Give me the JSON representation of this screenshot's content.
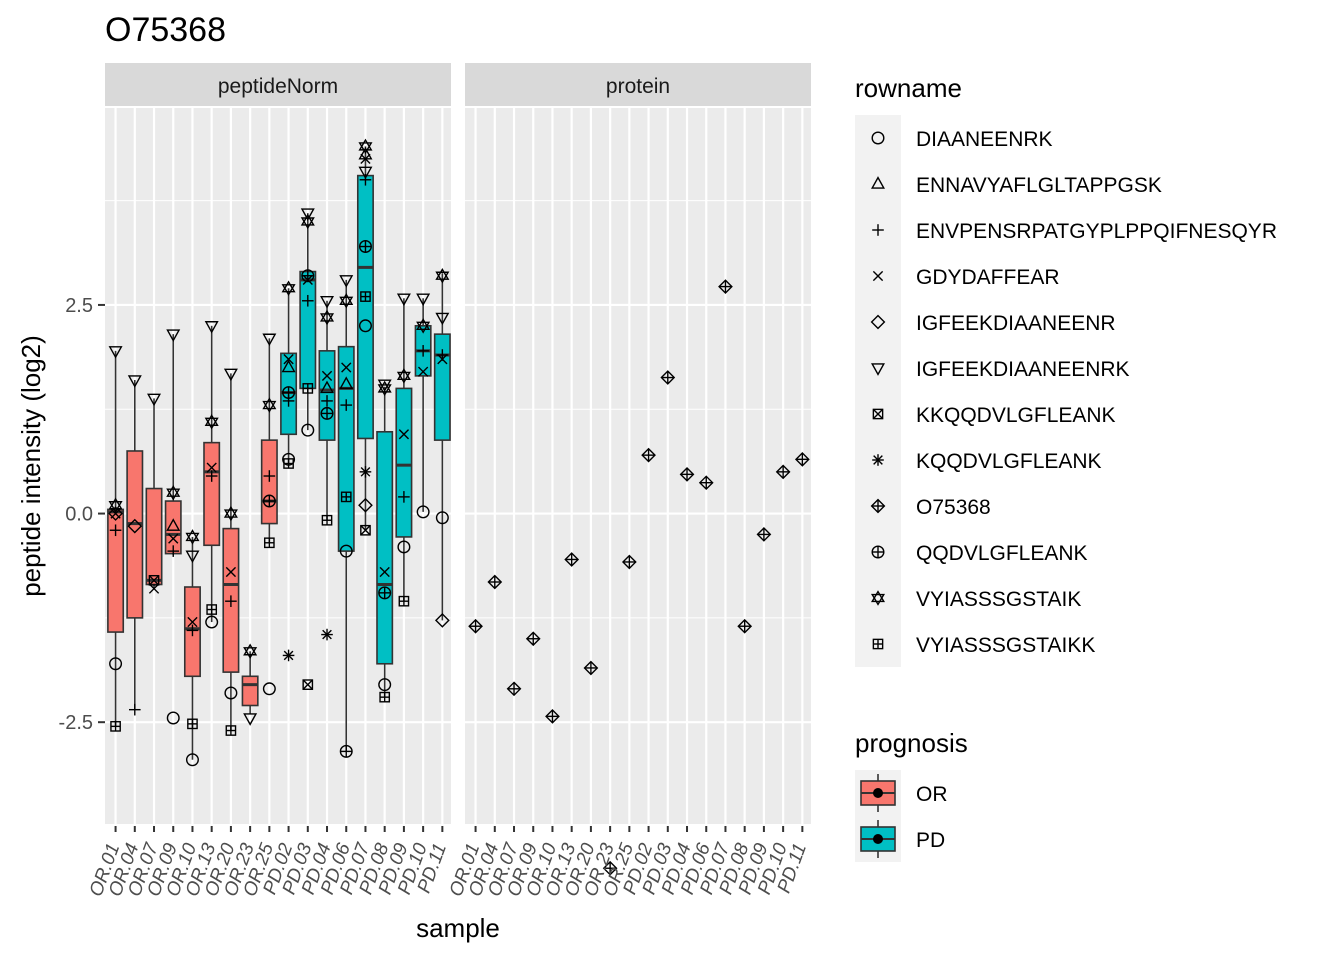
{
  "chart_data": {
    "type": "boxplot",
    "title": "O75368",
    "xlabel": "sample",
    "ylabel": "peptide intensity (log2)",
    "ylim": [
      -3.72,
      4.86
    ],
    "y_ticks": [
      -2.5,
      0.0,
      2.5
    ],
    "y_tick_labels": [
      "-2.5",
      "0.0",
      "2.5"
    ],
    "samples": [
      "OR.01",
      "OR.04",
      "OR.07",
      "OR.09",
      "OR.10",
      "OR.13",
      "OR.20",
      "OR.23",
      "OR.25",
      "PD.02",
      "PD.03",
      "PD.04",
      "PD.06",
      "PD.07",
      "PD.08",
      "PD.09",
      "PD.10",
      "PD.11"
    ],
    "sample_prognosis": [
      "OR",
      "OR",
      "OR",
      "OR",
      "OR",
      "OR",
      "OR",
      "OR",
      "OR",
      "PD",
      "PD",
      "PD",
      "PD",
      "PD",
      "PD",
      "PD",
      "PD",
      "PD"
    ],
    "facets": [
      {
        "name": "peptideNorm",
        "boxes": [
          {
            "q1": -1.42,
            "median": 0.02,
            "q3": 0.05,
            "lower": -2.55,
            "upper": 1.95
          },
          {
            "q1": -1.25,
            "median": -0.12,
            "q3": 0.75,
            "lower": -2.35,
            "upper": 1.6
          },
          {
            "q1": -0.85,
            "median": -0.8,
            "q3": 0.3,
            "lower": -0.9,
            "upper": 1.38
          },
          {
            "q1": -0.48,
            "median": -0.25,
            "q3": 0.15,
            "lower": -0.5,
            "upper": 2.15
          },
          {
            "q1": -1.95,
            "median": -1.38,
            "q3": -0.88,
            "lower": -2.95,
            "upper": -0.28
          },
          {
            "q1": -0.38,
            "median": 0.5,
            "q3": 0.85,
            "lower": -1.3,
            "upper": 2.25
          },
          {
            "q1": -1.9,
            "median": -0.85,
            "q3": -0.18,
            "lower": -2.6,
            "upper": 1.68
          },
          {
            "q1": -2.3,
            "median": -2.05,
            "q3": -1.95,
            "lower": -2.4,
            "upper": -1.65
          },
          {
            "q1": -0.12,
            "median": 0.15,
            "q3": 0.88,
            "lower": -0.35,
            "upper": 2.1
          },
          {
            "q1": 0.95,
            "median": 1.45,
            "q3": 1.92,
            "lower": 0.6,
            "upper": 2.7
          },
          {
            "q1": 1.5,
            "median": 2.8,
            "q3": 2.9,
            "lower": 1.0,
            "upper": 3.6
          },
          {
            "q1": 0.88,
            "median": 1.48,
            "q3": 1.95,
            "lower": -0.08,
            "upper": 2.55
          },
          {
            "q1": -0.45,
            "median": 1.5,
            "q3": 2.0,
            "lower": -2.85,
            "upper": 2.8
          },
          {
            "q1": 0.9,
            "median": 2.95,
            "q3": 4.05,
            "lower": -0.2,
            "upper": 4.4
          },
          {
            "q1": -1.8,
            "median": -0.85,
            "q3": 0.98,
            "lower": -2.2,
            "upper": 1.52
          },
          {
            "q1": -0.28,
            "median": 0.58,
            "q3": 1.5,
            "lower": -1.05,
            "upper": 2.58
          },
          {
            "q1": 1.65,
            "median": 1.95,
            "q3": 2.25,
            "lower": 0.02,
            "upper": 2.58
          },
          {
            "q1": 0.88,
            "median": 1.9,
            "q3": 2.15,
            "lower": -1.28,
            "upper": 2.88
          }
        ],
        "points": [
          {
            "s": 0,
            "y": -0.2,
            "p": "ENVPENSRPATGYPLPPQIFNESQYR"
          },
          {
            "s": 0,
            "y": 0.0,
            "p": "GDYDAFFEAR"
          },
          {
            "s": 0,
            "y": 0.0,
            "p": "IGFEEKDIAANEENR"
          },
          {
            "s": 0,
            "y": 1.95,
            "p": "IGFEEKDIAANEENRK"
          },
          {
            "s": 0,
            "y": 0.1,
            "p": "VYIASSSGSTAIK"
          },
          {
            "s": 0,
            "y": -1.8,
            "p": "DIAANEENRK"
          },
          {
            "s": 0,
            "y": -2.55,
            "p": "VYIASSSGSTAIKK"
          },
          {
            "s": 1,
            "y": -0.15,
            "p": "IGFEEKDIAANEENR"
          },
          {
            "s": 1,
            "y": 1.6,
            "p": "IGFEEKDIAANEENRK"
          },
          {
            "s": 1,
            "y": -2.35,
            "p": "ENVPENSRPATGYPLPPQIFNESQYR"
          },
          {
            "s": 2,
            "y": -0.9,
            "p": "GDYDAFFEAR"
          },
          {
            "s": 2,
            "y": -0.8,
            "p": "KKQQDVLGFLEANK"
          },
          {
            "s": 2,
            "y": 1.38,
            "p": "IGFEEKDIAANEENRK"
          },
          {
            "s": 3,
            "y": -0.15,
            "p": "ENNAVYAFLGLTAPPGSK"
          },
          {
            "s": 3,
            "y": -0.45,
            "p": "ENVPENSRPATGYPLPPQIFNESQYR"
          },
          {
            "s": 3,
            "y": -0.3,
            "p": "GDYDAFFEAR"
          },
          {
            "s": 3,
            "y": 2.15,
            "p": "IGFEEKDIAANEENRK"
          },
          {
            "s": 3,
            "y": 0.25,
            "p": "VYIASSSGSTAIK"
          },
          {
            "s": 3,
            "y": -2.45,
            "p": "DIAANEENRK"
          },
          {
            "s": 4,
            "y": -1.4,
            "p": "ENVPENSRPATGYPLPPQIFNESQYR"
          },
          {
            "s": 4,
            "y": -1.3,
            "p": "GDYDAFFEAR"
          },
          {
            "s": 4,
            "y": -0.5,
            "p": "IGFEEKDIAANEENRK"
          },
          {
            "s": 4,
            "y": -0.28,
            "p": "VYIASSSGSTAIK"
          },
          {
            "s": 4,
            "y": -2.52,
            "p": "VYIASSSGSTAIKK"
          },
          {
            "s": 4,
            "y": -2.95,
            "p": "DIAANEENRK"
          },
          {
            "s": 5,
            "y": 0.55,
            "p": "GDYDAFFEAR"
          },
          {
            "s": 5,
            "y": 0.45,
            "p": "ENVPENSRPATGYPLPPQIFNESQYR"
          },
          {
            "s": 5,
            "y": 2.25,
            "p": "IGFEEKDIAANEENRK"
          },
          {
            "s": 5,
            "y": 1.1,
            "p": "VYIASSSGSTAIK"
          },
          {
            "s": 5,
            "y": -1.3,
            "p": "DIAANEENRK"
          },
          {
            "s": 5,
            "y": -1.15,
            "p": "VYIASSSGSTAIKK"
          },
          {
            "s": 6,
            "y": -0.7,
            "p": "GDYDAFFEAR"
          },
          {
            "s": 6,
            "y": -1.05,
            "p": "ENVPENSRPATGYPLPPQIFNESQYR"
          },
          {
            "s": 6,
            "y": 0.0,
            "p": "VYIASSSGSTAIK"
          },
          {
            "s": 6,
            "y": 1.68,
            "p": "IGFEEKDIAANEENRK"
          },
          {
            "s": 6,
            "y": -2.15,
            "p": "DIAANEENRK"
          },
          {
            "s": 6,
            "y": -2.6,
            "p": "VYIASSSGSTAIKK"
          },
          {
            "s": 7,
            "y": -1.65,
            "p": "VYIASSSGSTAIK"
          },
          {
            "s": 7,
            "y": -2.45,
            "p": "IGFEEKDIAANEENRK"
          },
          {
            "s": 8,
            "y": 0.45,
            "p": "ENVPENSRPATGYPLPPQIFNESQYR"
          },
          {
            "s": 8,
            "y": 0.15,
            "p": "QQDVLGFLEANK"
          },
          {
            "s": 8,
            "y": 1.3,
            "p": "VYIASSSGSTAIK"
          },
          {
            "s": 8,
            "y": 2.1,
            "p": "IGFEEKDIAANEENRK"
          },
          {
            "s": 8,
            "y": -0.35,
            "p": "VYIASSSGSTAIKK"
          },
          {
            "s": 8,
            "y": -2.1,
            "p": "DIAANEENRK"
          },
          {
            "s": 9,
            "y": 1.85,
            "p": "GDYDAFFEAR"
          },
          {
            "s": 9,
            "y": 1.75,
            "p": "ENNAVYAFLGLTAPPGSK"
          },
          {
            "s": 9,
            "y": 1.35,
            "p": "ENVPENSRPATGYPLPPQIFNESQYR"
          },
          {
            "s": 9,
            "y": 1.45,
            "p": "QQDVLGFLEANK"
          },
          {
            "s": 9,
            "y": 2.7,
            "p": "VYIASSSGSTAIK"
          },
          {
            "s": 9,
            "y": 0.65,
            "p": "DIAANEENRK"
          },
          {
            "s": 9,
            "y": 0.6,
            "p": "VYIASSSGSTAIKK"
          },
          {
            "s": 9,
            "y": -1.7,
            "p": "KQQDVLGFLEANK"
          },
          {
            "s": 10,
            "y": 2.8,
            "p": "GDYDAFFEAR"
          },
          {
            "s": 10,
            "y": 2.55,
            "p": "ENVPENSRPATGYPLPPQIFNESQYR"
          },
          {
            "s": 10,
            "y": 2.85,
            "p": "QQDVLGFLEANK"
          },
          {
            "s": 10,
            "y": 3.6,
            "p": "IGFEEKDIAANEENRK"
          },
          {
            "s": 10,
            "y": 3.5,
            "p": "VYIASSSGSTAIK"
          },
          {
            "s": 10,
            "y": 1.5,
            "p": "VYIASSSGSTAIKK"
          },
          {
            "s": 10,
            "y": 1.0,
            "p": "DIAANEENRK"
          },
          {
            "s": 10,
            "y": -2.05,
            "p": "KKQQDVLGFLEANK"
          },
          {
            "s": 11,
            "y": 1.65,
            "p": "GDYDAFFEAR"
          },
          {
            "s": 11,
            "y": 1.5,
            "p": "ENNAVYAFLGLTAPPGSK"
          },
          {
            "s": 11,
            "y": 1.35,
            "p": "ENVPENSRPATGYPLPPQIFNESQYR"
          },
          {
            "s": 11,
            "y": 1.2,
            "p": "QQDVLGFLEANK"
          },
          {
            "s": 11,
            "y": 2.55,
            "p": "IGFEEKDIAANEENRK"
          },
          {
            "s": 11,
            "y": 2.35,
            "p": "VYIASSSGSTAIK"
          },
          {
            "s": 11,
            "y": -0.08,
            "p": "VYIASSSGSTAIKK"
          },
          {
            "s": 11,
            "y": -1.45,
            "p": "KQQDVLGFLEANK"
          },
          {
            "s": 12,
            "y": 1.75,
            "p": "GDYDAFFEAR"
          },
          {
            "s": 12,
            "y": 1.55,
            "p": "ENNAVYAFLGLTAPPGSK"
          },
          {
            "s": 12,
            "y": 1.3,
            "p": "ENVPENSRPATGYPLPPQIFNESQYR"
          },
          {
            "s": 12,
            "y": 2.8,
            "p": "IGFEEKDIAANEENRK"
          },
          {
            "s": 12,
            "y": 2.55,
            "p": "VYIASSSGSTAIK"
          },
          {
            "s": 12,
            "y": 0.2,
            "p": "VYIASSSGSTAIKK"
          },
          {
            "s": 12,
            "y": -0.45,
            "p": "DIAANEENRK"
          },
          {
            "s": 12,
            "y": -2.85,
            "p": "QQDVLGFLEANK"
          },
          {
            "s": 13,
            "y": 4.4,
            "p": "VYIASSSGSTAIK"
          },
          {
            "s": 13,
            "y": 4.3,
            "p": "ENNAVYAFLGLTAPPGSK"
          },
          {
            "s": 13,
            "y": 4.25,
            "p": "GDYDAFFEAR"
          },
          {
            "s": 13,
            "y": 4.0,
            "p": "ENVPENSRPATGYPLPPQIFNESQYR"
          },
          {
            "s": 13,
            "y": 4.1,
            "p": "IGFEEKDIAANEENRK"
          },
          {
            "s": 13,
            "y": 3.2,
            "p": "QQDVLGFLEANK"
          },
          {
            "s": 13,
            "y": 2.6,
            "p": "VYIASSSGSTAIKK"
          },
          {
            "s": 13,
            "y": 2.25,
            "p": "DIAANEENRK"
          },
          {
            "s": 13,
            "y": 0.5,
            "p": "KQQDVLGFLEANK"
          },
          {
            "s": 13,
            "y": 0.1,
            "p": "IGFEEKDIAANEENR"
          },
          {
            "s": 13,
            "y": -0.2,
            "p": "KKQQDVLGFLEANK"
          },
          {
            "s": 14,
            "y": 1.55,
            "p": "IGFEEKDIAANEENRK"
          },
          {
            "s": 14,
            "y": 1.5,
            "p": "VYIASSSGSTAIK"
          },
          {
            "s": 14,
            "y": -0.7,
            "p": "GDYDAFFEAR"
          },
          {
            "s": 14,
            "y": -0.95,
            "p": "QQDVLGFLEANK"
          },
          {
            "s": 14,
            "y": -2.05,
            "p": "DIAANEENRK"
          },
          {
            "s": 14,
            "y": -2.2,
            "p": "VYIASSSGSTAIKK"
          },
          {
            "s": 15,
            "y": 0.95,
            "p": "GDYDAFFEAR"
          },
          {
            "s": 15,
            "y": 0.2,
            "p": "ENVPENSRPATGYPLPPQIFNESQYR"
          },
          {
            "s": 15,
            "y": 1.65,
            "p": "VYIASSSGSTAIK"
          },
          {
            "s": 15,
            "y": 2.58,
            "p": "IGFEEKDIAANEENRK"
          },
          {
            "s": 15,
            "y": -0.4,
            "p": "DIAANEENRK"
          },
          {
            "s": 15,
            "y": -1.05,
            "p": "VYIASSSGSTAIKK"
          },
          {
            "s": 16,
            "y": 1.95,
            "p": "ENVPENSRPATGYPLPPQIFNESQYR"
          },
          {
            "s": 16,
            "y": 1.7,
            "p": "GDYDAFFEAR"
          },
          {
            "s": 16,
            "y": 2.25,
            "p": "VYIASSSGSTAIK"
          },
          {
            "s": 16,
            "y": 2.58,
            "p": "IGFEEKDIAANEENRK"
          },
          {
            "s": 16,
            "y": 0.02,
            "p": "DIAANEENRK"
          },
          {
            "s": 17,
            "y": 1.9,
            "p": "ENVPENSRPATGYPLPPQIFNESQYR"
          },
          {
            "s": 17,
            "y": 1.85,
            "p": "GDYDAFFEAR"
          },
          {
            "s": 17,
            "y": 2.35,
            "p": "IGFEEKDIAANEENRK"
          },
          {
            "s": 17,
            "y": 2.85,
            "p": "VYIASSSGSTAIK"
          },
          {
            "s": 17,
            "y": -0.05,
            "p": "DIAANEENRK"
          },
          {
            "s": 17,
            "y": -1.28,
            "p": "IGFEEKDIAANEENR"
          }
        ]
      },
      {
        "name": "protein",
        "boxes": [],
        "points": [
          {
            "s": 0,
            "y": -1.35,
            "p": "O75368"
          },
          {
            "s": 1,
            "y": -0.82,
            "p": "O75368"
          },
          {
            "s": 2,
            "y": -2.1,
            "p": "O75368"
          },
          {
            "s": 3,
            "y": -1.5,
            "p": "O75368"
          },
          {
            "s": 4,
            "y": -2.43,
            "p": "O75368"
          },
          {
            "s": 5,
            "y": -0.55,
            "p": "O75368"
          },
          {
            "s": 6,
            "y": -1.85,
            "p": "O75368"
          },
          {
            "s": 7,
            "y": -4.25,
            "p": "O75368"
          },
          {
            "s": 8,
            "y": -0.58,
            "p": "O75368"
          },
          {
            "s": 9,
            "y": 0.7,
            "p": "O75368"
          },
          {
            "s": 10,
            "y": 1.63,
            "p": "O75368"
          },
          {
            "s": 11,
            "y": 0.47,
            "p": "O75368"
          },
          {
            "s": 12,
            "y": 0.37,
            "p": "O75368"
          },
          {
            "s": 13,
            "y": 2.72,
            "p": "O75368"
          },
          {
            "s": 14,
            "y": -1.35,
            "p": "O75368"
          },
          {
            "s": 15,
            "y": -0.25,
            "p": "O75368"
          },
          {
            "s": 16,
            "y": 0.5,
            "p": "O75368"
          },
          {
            "s": 17,
            "y": 0.65,
            "p": "O75368"
          }
        ]
      }
    ],
    "legend_shape": {
      "title": "rowname",
      "position": "right",
      "items": [
        {
          "label": "DIAANEENRK",
          "shape": "circle"
        },
        {
          "label": "ENNAVYAFLGLTAPPGSK",
          "shape": "triangle"
        },
        {
          "label": "ENVPENSRPATGYPLPPQIFNESQYR",
          "shape": "plus"
        },
        {
          "label": "GDYDAFFEAR",
          "shape": "cross"
        },
        {
          "label": "IGFEEKDIAANEENR",
          "shape": "diamond"
        },
        {
          "label": "IGFEEKDIAANEENRK",
          "shape": "triangle-down"
        },
        {
          "label": "KKQQDVLGFLEANK",
          "shape": "square-cross"
        },
        {
          "label": "KQQDVLGFLEANK",
          "shape": "asterisk"
        },
        {
          "label": "O75368",
          "shape": "diamond-plus"
        },
        {
          "label": "QQDVLGFLEANK",
          "shape": "circle-plus"
        },
        {
          "label": "VYIASSSGSTAIK",
          "shape": "star-david"
        },
        {
          "label": "VYIASSSGSTAIKK",
          "shape": "square-plus"
        }
      ]
    },
    "legend_fill": {
      "title": "prognosis",
      "position": "right",
      "items": [
        {
          "label": "OR",
          "color": "#F8766D"
        },
        {
          "label": "PD",
          "color": "#00BFC4"
        }
      ]
    },
    "grid": true,
    "panel_background": "#EBEBEB",
    "strip_background": "#D9D9D9"
  }
}
